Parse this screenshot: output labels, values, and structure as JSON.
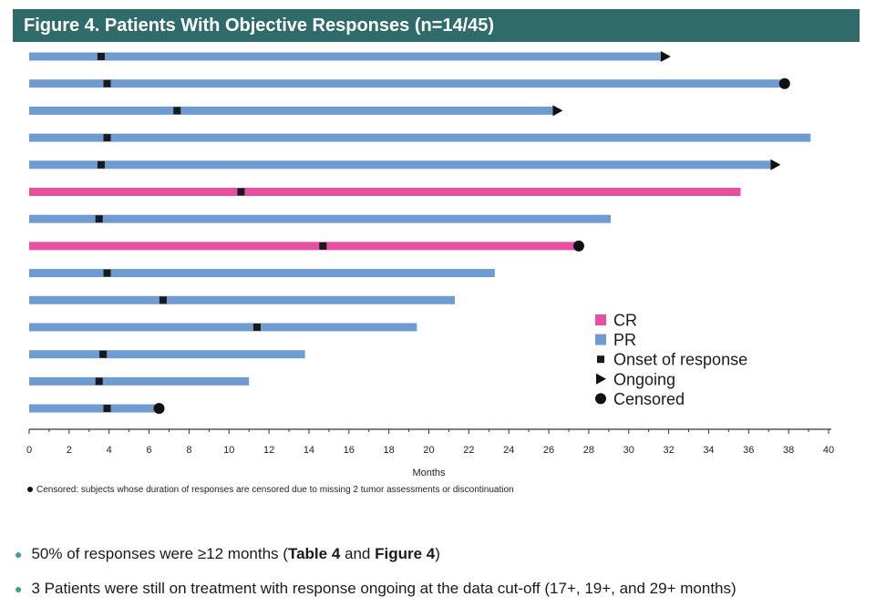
{
  "title": "Figure 4. Patients With Objective Responses (n=14/45)",
  "chart_data": {
    "type": "swimmer",
    "xlabel": "Months",
    "xlim": [
      0,
      40
    ],
    "xticks": [
      0,
      2,
      4,
      6,
      8,
      10,
      12,
      14,
      16,
      18,
      20,
      22,
      24,
      26,
      28,
      30,
      32,
      34,
      36,
      38,
      40
    ],
    "colors": {
      "CR": "#e84fa1",
      "PR": "#6f9bd1"
    },
    "legend": [
      "CR",
      "PR",
      "Onset of response",
      "Ongoing",
      "Censored"
    ],
    "legend_position": "lower-right",
    "patients": [
      {
        "response": "PR",
        "end": 31.6,
        "onset": 3.6,
        "marker": "ongoing"
      },
      {
        "response": "PR",
        "end": 37.8,
        "onset": 3.9,
        "marker": "censored"
      },
      {
        "response": "PR",
        "end": 26.2,
        "onset": 7.4,
        "marker": "ongoing"
      },
      {
        "response": "PR",
        "end": 39.1,
        "onset": 3.9,
        "marker": "none"
      },
      {
        "response": "PR",
        "end": 37.1,
        "onset": 3.6,
        "marker": "ongoing"
      },
      {
        "response": "CR",
        "end": 35.6,
        "onset": 10.6,
        "marker": "none"
      },
      {
        "response": "PR",
        "end": 29.1,
        "onset": 3.5,
        "marker": "none"
      },
      {
        "response": "CR",
        "end": 27.5,
        "onset": 14.7,
        "marker": "censored"
      },
      {
        "response": "PR",
        "end": 23.3,
        "onset": 3.9,
        "marker": "none"
      },
      {
        "response": "PR",
        "end": 21.3,
        "onset": 6.7,
        "marker": "none"
      },
      {
        "response": "PR",
        "end": 19.4,
        "onset": 11.4,
        "marker": "none"
      },
      {
        "response": "PR",
        "end": 13.8,
        "onset": 3.7,
        "marker": "none"
      },
      {
        "response": "PR",
        "end": 11.0,
        "onset": 3.5,
        "marker": "none"
      },
      {
        "response": "PR",
        "end": 6.5,
        "onset": 3.9,
        "marker": "censored"
      }
    ]
  },
  "footnote": "Censored: subjects whose duration of responses are censored due to missing 2 tumor assessments or discontinuation",
  "bullets": [
    {
      "parts": [
        {
          "text": "50% of responses were ≥12 months (",
          "bold": false
        },
        {
          "text": "Table 4",
          "bold": true
        },
        {
          "text": " and ",
          "bold": false
        },
        {
          "text": "Figure 4",
          "bold": true
        },
        {
          "text": ")",
          "bold": false
        }
      ]
    },
    {
      "parts": [
        {
          "text": "3 Patients were still on treatment with response ongoing at the data cut-off (17+, 19+, and 29+ months)",
          "bold": false
        }
      ]
    }
  ]
}
